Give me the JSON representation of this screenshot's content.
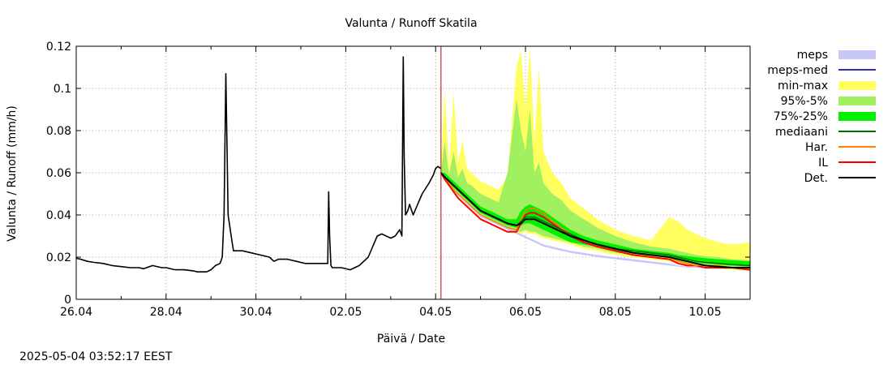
{
  "chart_data": {
    "type": "line",
    "title": "Valunta / Runoff  Skatila",
    "xlabel": "Päivä / Date",
    "ylabel": "Valunta / Runoff (mm/h)",
    "timestamp": "2025-05-04 03:52:17 EEST",
    "xlim_days": [
      0,
      15
    ],
    "ylim": [
      0,
      0.12
    ],
    "x_ticks": [
      {
        "day": 0,
        "label": "26.04"
      },
      {
        "day": 2,
        "label": "28.04"
      },
      {
        "day": 4,
        "label": "30.04"
      },
      {
        "day": 6,
        "label": "02.05"
      },
      {
        "day": 8,
        "label": "04.05"
      },
      {
        "day": 10,
        "label": "06.05"
      },
      {
        "day": 12,
        "label": "08.05"
      },
      {
        "day": 14,
        "label": "10.05"
      }
    ],
    "y_ticks": [
      {
        "value": 0,
        "label": "0"
      },
      {
        "value": 0.02,
        "label": "0.02"
      },
      {
        "value": 0.04,
        "label": "0.04"
      },
      {
        "value": 0.06,
        "label": "0.06"
      },
      {
        "value": 0.08,
        "label": "0.08"
      },
      {
        "value": 0.1,
        "label": "0.1"
      },
      {
        "value": 0.12,
        "label": "0.12"
      }
    ],
    "forecast_start_day": 8.12,
    "legend": [
      {
        "label": "meps",
        "kind": "box",
        "color": "#c8c8f8"
      },
      {
        "label": "meps-med",
        "kind": "line",
        "color": "#3030c0"
      },
      {
        "label": "min-max",
        "kind": "box",
        "color": "#ffff60"
      },
      {
        "label": "95%-5%",
        "kind": "box",
        "color": "#a0f060"
      },
      {
        "label": "75%-25%",
        "kind": "box",
        "color": "#00f000"
      },
      {
        "label": "mediaani",
        "kind": "line",
        "color": "#007000"
      },
      {
        "label": "Har.",
        "kind": "line",
        "color": "#ff8000"
      },
      {
        "label": "IL",
        "kind": "line",
        "color": "#ff0000"
      },
      {
        "label": "Det.",
        "kind": "line",
        "color": "#000000"
      }
    ],
    "colors": {
      "meps": "#c8c8f8",
      "min_max": "#ffff60",
      "p95_5": "#a0f060",
      "p75_25": "#00f000",
      "median": "#007000",
      "har": "#ff8000",
      "il": "#ff0000",
      "det": "#000000",
      "now_line": "#c00000"
    },
    "observed": {
      "x": [
        0,
        0.1,
        0.25,
        0.4,
        0.6,
        0.8,
        1.0,
        1.2,
        1.4,
        1.5,
        1.7,
        1.9,
        2.0,
        2.2,
        2.4,
        2.6,
        2.7,
        2.9,
        3.0,
        3.1,
        3.2,
        3.25,
        3.29,
        3.33,
        3.38,
        3.45,
        3.5,
        3.7,
        3.9,
        4.1,
        4.3,
        4.4,
        4.5,
        4.7,
        4.9,
        5.1,
        5.3,
        5.5,
        5.6,
        5.62,
        5.64,
        5.67,
        5.7,
        5.9,
        6.1,
        6.3,
        6.5,
        6.6,
        6.7,
        6.8,
        6.9,
        7.0,
        7.1,
        7.2,
        7.25,
        7.28,
        7.3,
        7.33,
        7.38,
        7.42,
        7.5,
        7.6,
        7.7,
        7.85,
        7.95,
        8.0,
        8.05,
        8.12
      ],
      "y": [
        0.0195,
        0.019,
        0.018,
        0.0175,
        0.017,
        0.016,
        0.0155,
        0.015,
        0.015,
        0.0145,
        0.016,
        0.015,
        0.015,
        0.014,
        0.014,
        0.0135,
        0.013,
        0.013,
        0.014,
        0.016,
        0.017,
        0.02,
        0.04,
        0.107,
        0.04,
        0.03,
        0.023,
        0.023,
        0.022,
        0.021,
        0.02,
        0.018,
        0.019,
        0.019,
        0.018,
        0.017,
        0.017,
        0.017,
        0.017,
        0.051,
        0.03,
        0.016,
        0.015,
        0.015,
        0.014,
        0.016,
        0.02,
        0.025,
        0.03,
        0.031,
        0.03,
        0.029,
        0.03,
        0.033,
        0.03,
        0.115,
        0.068,
        0.04,
        0.042,
        0.045,
        0.04,
        0.045,
        0.05,
        0.055,
        0.059,
        0.062,
        0.063,
        0.062
      ]
    },
    "forecast_x": [
      8.12,
      8.2,
      8.3,
      8.4,
      8.5,
      8.6,
      8.7,
      8.8,
      8.9,
      9.0,
      9.2,
      9.4,
      9.6,
      9.8,
      9.9,
      10.0,
      10.1,
      10.2,
      10.3,
      10.4,
      10.6,
      10.8,
      11.0,
      11.3,
      11.6,
      12.0,
      12.4,
      12.8,
      13.2,
      13.4,
      13.6,
      13.8,
      14.0,
      14.3,
      14.6,
      15.0
    ],
    "min_max": {
      "lower": [
        0.06,
        0.057,
        0.054,
        0.051,
        0.049,
        0.047,
        0.045,
        0.043,
        0.041,
        0.039,
        0.037,
        0.035,
        0.033,
        0.031,
        0.031,
        0.032,
        0.031,
        0.031,
        0.03,
        0.029,
        0.028,
        0.027,
        0.026,
        0.024,
        0.023,
        0.021,
        0.02,
        0.019,
        0.018,
        0.017,
        0.016,
        0.0155,
        0.015,
        0.0145,
        0.014,
        0.0135
      ],
      "upper": [
        0.061,
        0.1,
        0.062,
        0.098,
        0.065,
        0.075,
        0.062,
        0.06,
        0.058,
        0.056,
        0.054,
        0.052,
        0.058,
        0.11,
        0.118,
        0.09,
        0.12,
        0.075,
        0.11,
        0.07,
        0.06,
        0.055,
        0.048,
        0.043,
        0.038,
        0.033,
        0.03,
        0.028,
        0.039,
        0.037,
        0.033,
        0.031,
        0.029,
        0.027,
        0.026,
        0.027
      ]
    },
    "p95_5": {
      "lower": [
        0.06,
        0.057,
        0.054,
        0.052,
        0.05,
        0.048,
        0.046,
        0.044,
        0.042,
        0.04,
        0.038,
        0.036,
        0.034,
        0.032,
        0.032,
        0.033,
        0.032,
        0.032,
        0.031,
        0.03,
        0.029,
        0.028,
        0.027,
        0.025,
        0.024,
        0.022,
        0.021,
        0.02,
        0.019,
        0.018,
        0.017,
        0.0165,
        0.016,
        0.0155,
        0.015,
        0.0145
      ],
      "upper": [
        0.06,
        0.075,
        0.059,
        0.07,
        0.058,
        0.062,
        0.055,
        0.054,
        0.052,
        0.05,
        0.048,
        0.046,
        0.06,
        0.095,
        0.08,
        0.07,
        0.09,
        0.06,
        0.065,
        0.055,
        0.05,
        0.047,
        0.042,
        0.038,
        0.034,
        0.03,
        0.027,
        0.025,
        0.024,
        0.023,
        0.022,
        0.021,
        0.0205,
        0.02,
        0.019,
        0.0185
      ]
    },
    "p75_25": {
      "lower": [
        0.06,
        0.057,
        0.055,
        0.053,
        0.051,
        0.049,
        0.047,
        0.045,
        0.043,
        0.041,
        0.039,
        0.037,
        0.035,
        0.034,
        0.035,
        0.036,
        0.036,
        0.035,
        0.034,
        0.033,
        0.031,
        0.029,
        0.027,
        0.026,
        0.025,
        0.023,
        0.022,
        0.021,
        0.02,
        0.019,
        0.018,
        0.0175,
        0.017,
        0.0165,
        0.016,
        0.0155
      ],
      "upper": [
        0.06,
        0.06,
        0.058,
        0.056,
        0.054,
        0.052,
        0.05,
        0.048,
        0.046,
        0.044,
        0.042,
        0.04,
        0.038,
        0.038,
        0.042,
        0.044,
        0.045,
        0.044,
        0.043,
        0.042,
        0.039,
        0.036,
        0.033,
        0.03,
        0.028,
        0.026,
        0.024,
        0.023,
        0.022,
        0.021,
        0.0205,
        0.02,
        0.0195,
        0.019,
        0.0185,
        0.018
      ]
    },
    "meps_band": {
      "lower": [
        0.06,
        0.057,
        0.054,
        0.051,
        0.049,
        0.047,
        0.045,
        0.043,
        0.041,
        0.039,
        0.037,
        0.035,
        0.033,
        0.031,
        0.03,
        0.029,
        0.028,
        0.027,
        0.026,
        0.025,
        0.024,
        0.023,
        0.022,
        0.021,
        0.02,
        0.019,
        0.018,
        0.017,
        0.016,
        0.0155,
        0.015,
        0.015,
        0.015,
        0.015,
        0.015,
        0.015
      ],
      "upper": [
        0.06,
        0.058,
        0.055,
        0.052,
        0.05,
        0.048,
        0.046,
        0.044,
        0.042,
        0.04,
        0.038,
        0.036,
        0.034,
        0.032,
        0.031,
        0.03,
        0.029,
        0.028,
        0.027,
        0.026,
        0.025,
        0.024,
        0.023,
        0.022,
        0.021,
        0.02,
        0.019,
        0.018,
        0.017,
        0.016,
        0.0155,
        0.0155,
        0.0155,
        0.0155,
        0.0155,
        0.0155
      ]
    },
    "median": [
      0.06,
      0.058,
      0.056,
      0.054,
      0.052,
      0.05,
      0.048,
      0.046,
      0.044,
      0.042,
      0.04,
      0.038,
      0.036,
      0.035,
      0.037,
      0.039,
      0.039,
      0.039,
      0.038,
      0.037,
      0.035,
      0.033,
      0.031,
      0.028,
      0.026,
      0.024,
      0.023,
      0.022,
      0.021,
      0.02,
      0.019,
      0.018,
      0.0175,
      0.017,
      0.0165,
      0.016
    ],
    "har": [
      0.06,
      0.058,
      0.055,
      0.052,
      0.05,
      0.048,
      0.046,
      0.044,
      0.042,
      0.04,
      0.038,
      0.036,
      0.034,
      0.033,
      0.038,
      0.042,
      0.043,
      0.043,
      0.042,
      0.041,
      0.037,
      0.034,
      0.031,
      0.028,
      0.026,
      0.024,
      0.022,
      0.021,
      0.02,
      0.018,
      0.017,
      0.016,
      0.016,
      0.016,
      0.015,
      0.015
    ],
    "il": [
      0.06,
      0.057,
      0.054,
      0.051,
      0.048,
      0.046,
      0.044,
      0.042,
      0.04,
      0.038,
      0.036,
      0.034,
      0.032,
      0.032,
      0.036,
      0.04,
      0.041,
      0.041,
      0.04,
      0.039,
      0.036,
      0.033,
      0.03,
      0.027,
      0.025,
      0.023,
      0.021,
      0.02,
      0.019,
      0.017,
      0.016,
      0.016,
      0.015,
      0.015,
      0.015,
      0.014
    ],
    "det": [
      0.06,
      0.058,
      0.056,
      0.054,
      0.052,
      0.05,
      0.048,
      0.046,
      0.044,
      0.042,
      0.04,
      0.038,
      0.036,
      0.035,
      0.036,
      0.038,
      0.038,
      0.038,
      0.037,
      0.036,
      0.034,
      0.032,
      0.03,
      0.028,
      0.026,
      0.024,
      0.022,
      0.021,
      0.02,
      0.019,
      0.018,
      0.017,
      0.016,
      0.0155,
      0.015,
      0.015
    ]
  }
}
